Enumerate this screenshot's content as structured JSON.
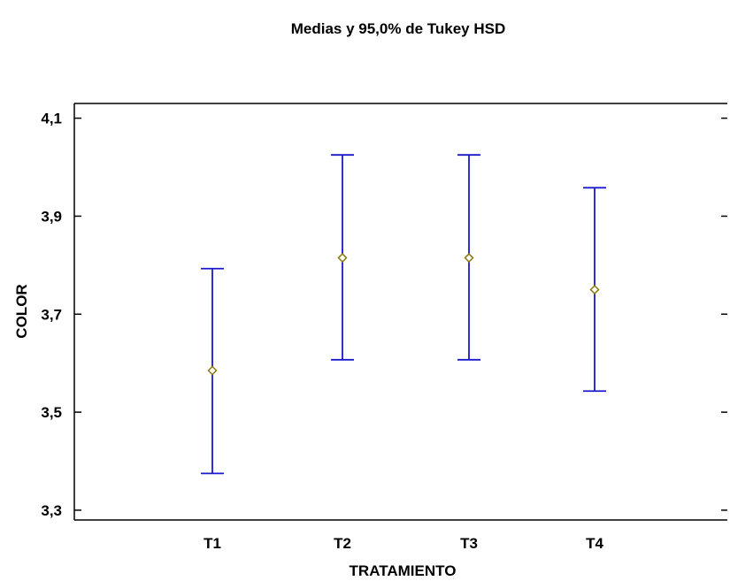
{
  "chart_data": {
    "type": "scatter",
    "subtype": "means-with-intervals",
    "title": "Medias y 95,0% de  Tukey HSD",
    "xlabel": "TRATAMIENTO",
    "ylabel": "COLOR",
    "categories": [
      "T1",
      "T2",
      "T3",
      "T4"
    ],
    "means": [
      3.585,
      3.815,
      3.815,
      3.75
    ],
    "lower": [
      3.375,
      3.607,
      3.607,
      3.543
    ],
    "upper": [
      3.793,
      4.025,
      4.025,
      3.958
    ],
    "ylim": [
      3.28,
      4.13
    ],
    "yticks": [
      3.3,
      3.5,
      3.7,
      3.9,
      4.1
    ],
    "ytick_labels": [
      "3,3",
      "3,5",
      "3,7",
      "3,9",
      "4,1"
    ],
    "grid": false,
    "legend": "none",
    "colors": {
      "interval": "#1a1acc",
      "mean_marker": "#8a7a10",
      "axis": "#000000"
    }
  }
}
